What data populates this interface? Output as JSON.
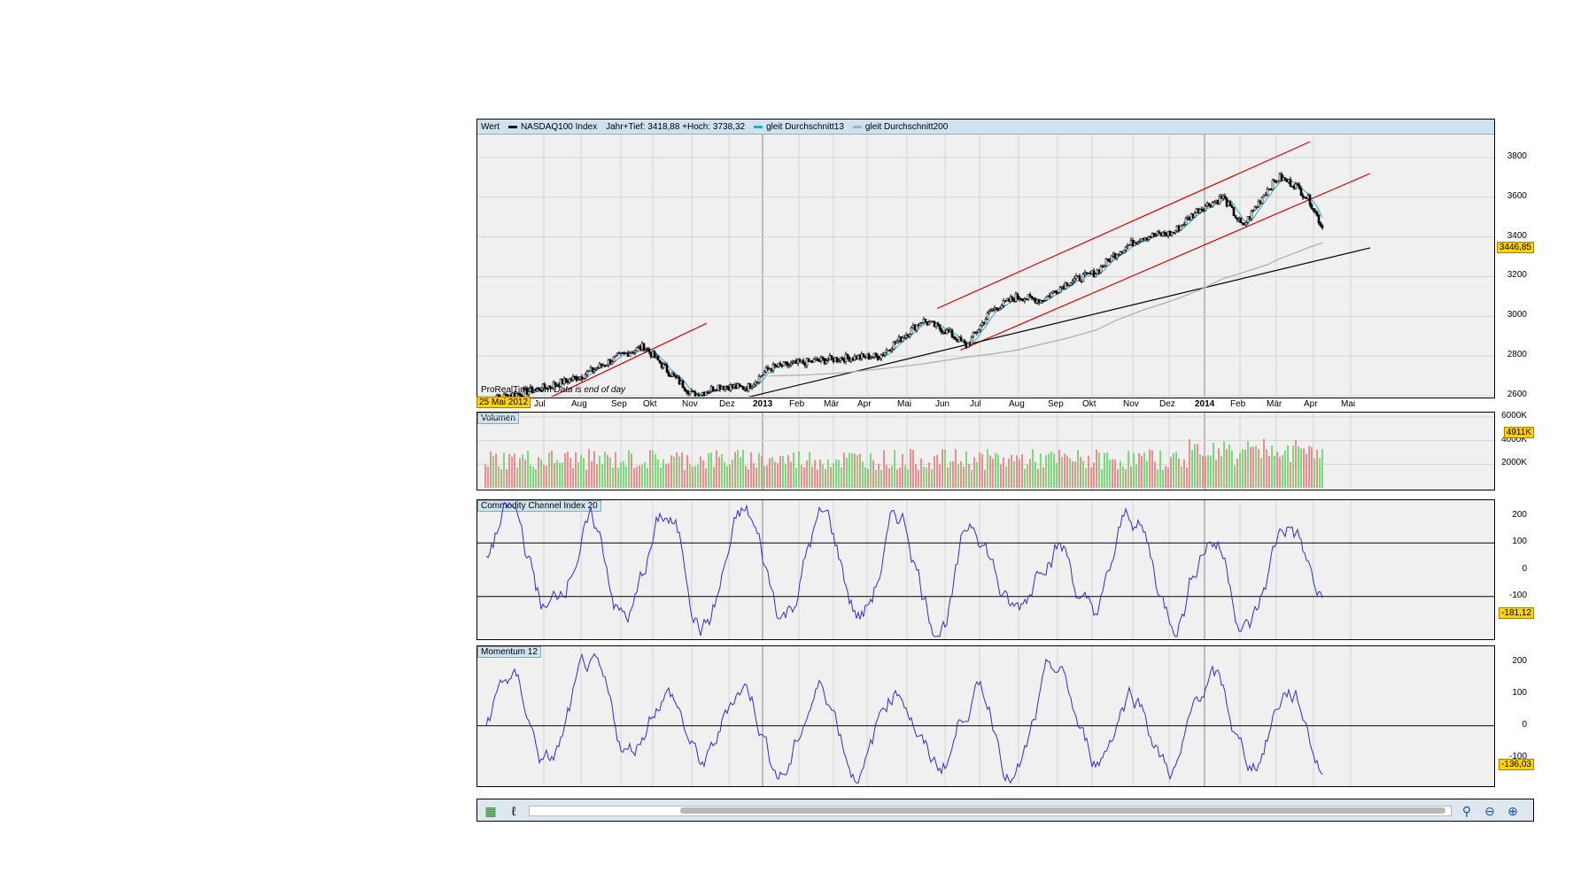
{
  "main": {
    "header": {
      "tab": "Wert",
      "instrument": "NASDAQ100 Index",
      "stats": "Jahr+Tief: 3418,88 +Hoch: 3738,32",
      "ma13": "gleit Durchschnitt13",
      "ma200": "gleit Durchschnitt200"
    },
    "watermark": "ProRealTime.com",
    "note": "Data is end of day",
    "last_value": "3446,85",
    "start_date": "25 Mai 2012",
    "y_ticks": [
      "3800",
      "3600",
      "3400",
      "3200",
      "3000",
      "2800",
      "2600"
    ],
    "months": [
      "Jul",
      "Aug",
      "Sep",
      "Okt",
      "Nov",
      "Dez",
      "2013",
      "Feb",
      "Mär",
      "Apr",
      "Mai",
      "Jun",
      "Jul",
      "Aug",
      "Sep",
      "Okt",
      "Nov",
      "Dez",
      "2014",
      "Feb",
      "Mär",
      "Apr",
      "Mai"
    ]
  },
  "volume": {
    "title": "Volumen",
    "y_ticks": [
      "6000K",
      "4000K",
      "2000K"
    ],
    "last_value": "4911K"
  },
  "cci": {
    "title": "Commodity Channel Index 20",
    "y_ticks": [
      "200",
      "100",
      "0",
      "-100"
    ],
    "last_value": "-181,12"
  },
  "momentum": {
    "title": "Momentum 12",
    "y_ticks": [
      "200",
      "100",
      "0",
      "-100"
    ],
    "last_value": "-136,03"
  },
  "colors": {
    "price_line": "#000000",
    "ma13": "#2aa9c9",
    "ma200": "#b0b0b0",
    "channel": "#e00000",
    "indicator": "#2f2fd0",
    "vol_up": "#7cd97c",
    "vol_down": "#e89090",
    "value_badge": "#ffd200"
  },
  "toolbar": {
    "icons": [
      "chart-type-icon",
      "settings-icon",
      "zoom-fit-icon",
      "zoom-out-icon",
      "zoom-in-icon"
    ]
  },
  "chart_data": [
    {
      "type": "line",
      "title": "NASDAQ100 Index",
      "x": [
        "2012-05-25",
        "2012-06-15",
        "2012-07-15",
        "2012-08-15",
        "2012-09-15",
        "2012-10-05",
        "2012-10-25",
        "2012-11-15",
        "2012-12-05",
        "2012-12-28",
        "2013-01-15",
        "2013-02-15",
        "2013-03-15",
        "2013-04-15",
        "2013-05-20",
        "2013-06-10",
        "2013-06-25",
        "2013-07-15",
        "2013-08-05",
        "2013-08-25",
        "2013-09-15",
        "2013-10-08",
        "2013-10-25",
        "2013-11-15",
        "2013-12-10",
        "2013-12-31",
        "2014-01-20",
        "2014-02-05",
        "2014-02-25",
        "2014-03-07",
        "2014-03-20",
        "2014-04-01",
        "2014-04-11"
      ],
      "series": [
        {
          "name": "NASDAQ100 Index",
          "values": [
            2570,
            2600,
            2640,
            2700,
            2800,
            2850,
            2720,
            2600,
            2650,
            2640,
            2740,
            2770,
            2790,
            2800,
            2980,
            2920,
            2850,
            3030,
            3100,
            3080,
            3170,
            3220,
            3320,
            3400,
            3420,
            3540,
            3600,
            3450,
            3640,
            3700,
            3660,
            3580,
            3446.85
          ]
        },
        {
          "name": "gleit Durchschnitt200",
          "values": [
            null,
            null,
            null,
            null,
            null,
            null,
            null,
            null,
            null,
            null,
            2700,
            2705,
            2715,
            2735,
            2760,
            2780,
            2795,
            2810,
            2830,
            2860,
            2890,
            2930,
            2980,
            3030,
            3080,
            3130,
            3190,
            3220,
            3260,
            3290,
            3320,
            3350,
            3370
          ]
        }
      ],
      "ylim": [
        2560,
        3880
      ]
    },
    {
      "type": "bar",
      "title": "Volumen",
      "ylim": [
        0,
        6000000
      ]
    },
    {
      "type": "line",
      "title": "Commodity Channel Index 20",
      "ylim": [
        -260,
        260
      ]
    },
    {
      "type": "line",
      "title": "Momentum 12",
      "ylim": [
        -190,
        250
      ]
    }
  ]
}
